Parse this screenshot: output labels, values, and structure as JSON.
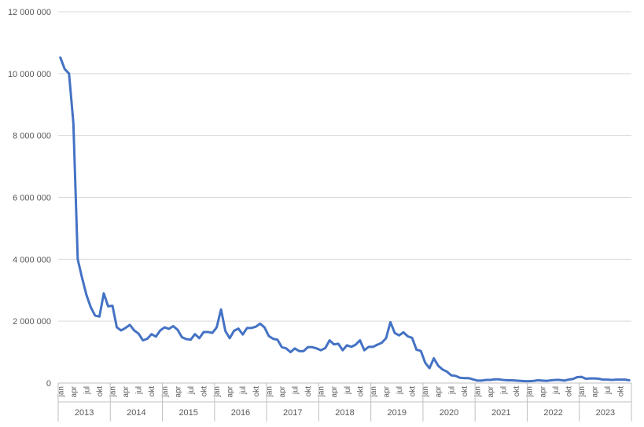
{
  "chart_data": {
    "type": "line",
    "title": "",
    "xlabel": "",
    "ylabel": "",
    "ylim": [
      0,
      12000000
    ],
    "y_ticks": [
      "0",
      "2 000 000",
      "4 000 000",
      "6 000 000",
      "8 000 000",
      "10 000 000",
      "12 000 000"
    ],
    "y_tick_values": [
      0,
      2000000,
      4000000,
      6000000,
      8000000,
      10000000,
      12000000
    ],
    "grid": true,
    "legend": "none",
    "line_color": "#4472C4",
    "month_labels": [
      "jan",
      "apr",
      "jul",
      "okt"
    ],
    "years": [
      "2013",
      "2014",
      "2015",
      "2016",
      "2017",
      "2018",
      "2019",
      "2020",
      "2021",
      "2022",
      "2023"
    ],
    "series": [
      {
        "values": [
          10520000,
          10150000,
          10000000,
          8400000,
          4000000,
          3400000,
          2850000,
          2450000,
          2180000,
          2150000,
          2900000,
          2480000,
          2500000,
          1800000,
          1700000,
          1780000,
          1880000,
          1700000,
          1600000,
          1380000,
          1430000,
          1580000,
          1500000,
          1700000,
          1800000,
          1750000,
          1840000,
          1720000,
          1480000,
          1420000,
          1400000,
          1580000,
          1450000,
          1650000,
          1650000,
          1620000,
          1800000,
          2380000,
          1680000,
          1450000,
          1690000,
          1760000,
          1570000,
          1780000,
          1780000,
          1820000,
          1920000,
          1800000,
          1520000,
          1430000,
          1400000,
          1160000,
          1120000,
          1000000,
          1120000,
          1030000,
          1030000,
          1160000,
          1160000,
          1120000,
          1060000,
          1130000,
          1380000,
          1250000,
          1270000,
          1060000,
          1220000,
          1170000,
          1240000,
          1380000,
          1060000,
          1170000,
          1170000,
          1240000,
          1300000,
          1450000,
          1970000,
          1620000,
          1540000,
          1640000,
          1510000,
          1460000,
          1080000,
          1040000,
          660000,
          480000,
          800000,
          560000,
          440000,
          370000,
          250000,
          230000,
          170000,
          160000,
          160000,
          120000,
          80000,
          80000,
          100000,
          100000,
          120000,
          120000,
          100000,
          90000,
          90000,
          80000,
          70000,
          60000,
          60000,
          70000,
          90000,
          80000,
          70000,
          90000,
          100000,
          100000,
          80000,
          110000,
          130000,
          190000,
          200000,
          140000,
          150000,
          150000,
          140000,
          110000,
          110000,
          100000,
          110000,
          110000,
          110000,
          90000
        ]
      }
    ]
  }
}
